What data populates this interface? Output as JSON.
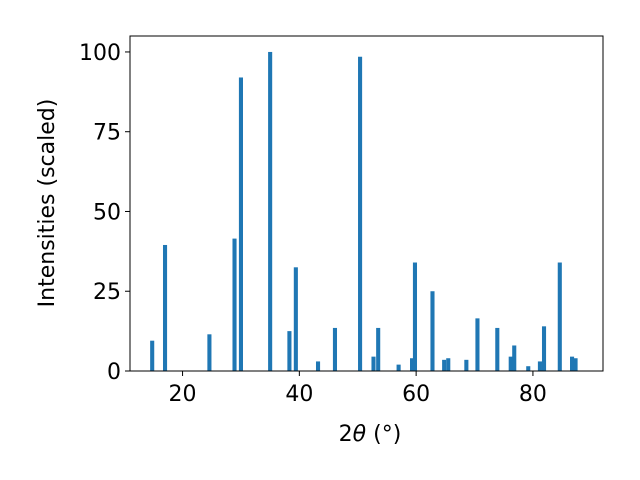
{
  "chart_data": {
    "type": "bar",
    "title": "",
    "xlabel_prefix": "2",
    "xlabel_theta": "θ",
    "xlabel_unit": " (°)",
    "ylabel": "Intensities (scaled)",
    "xlim": [
      11,
      92
    ],
    "ylim": [
      0,
      105
    ],
    "xticks": [
      20,
      40,
      60,
      80
    ],
    "yticks": [
      0,
      25,
      50,
      75,
      100
    ],
    "grid": false,
    "legend": "none",
    "bar_color": "#1f77b4",
    "bar_width": 0.7,
    "series": [
      {
        "x": [
          14.8,
          17.0,
          24.6,
          28.9,
          30.0,
          35.0,
          38.3,
          39.4,
          43.2,
          46.1,
          50.4,
          52.7,
          53.5,
          57.0,
          59.3,
          59.8,
          62.8,
          64.8,
          65.5,
          68.6,
          70.5,
          73.9,
          76.2,
          76.8,
          79.2,
          81.2,
          81.9,
          84.6,
          86.7,
          87.3
        ],
        "values": [
          9.5,
          39.5,
          11.5,
          41.5,
          92.0,
          100.0,
          12.5,
          32.5,
          3.0,
          13.5,
          98.5,
          4.5,
          13.5,
          2.0,
          4.0,
          34.0,
          25.0,
          3.5,
          4.0,
          3.5,
          16.5,
          13.5,
          4.5,
          8.0,
          1.5,
          3.0,
          14.0,
          34.0,
          4.5,
          4.0
        ]
      }
    ]
  }
}
